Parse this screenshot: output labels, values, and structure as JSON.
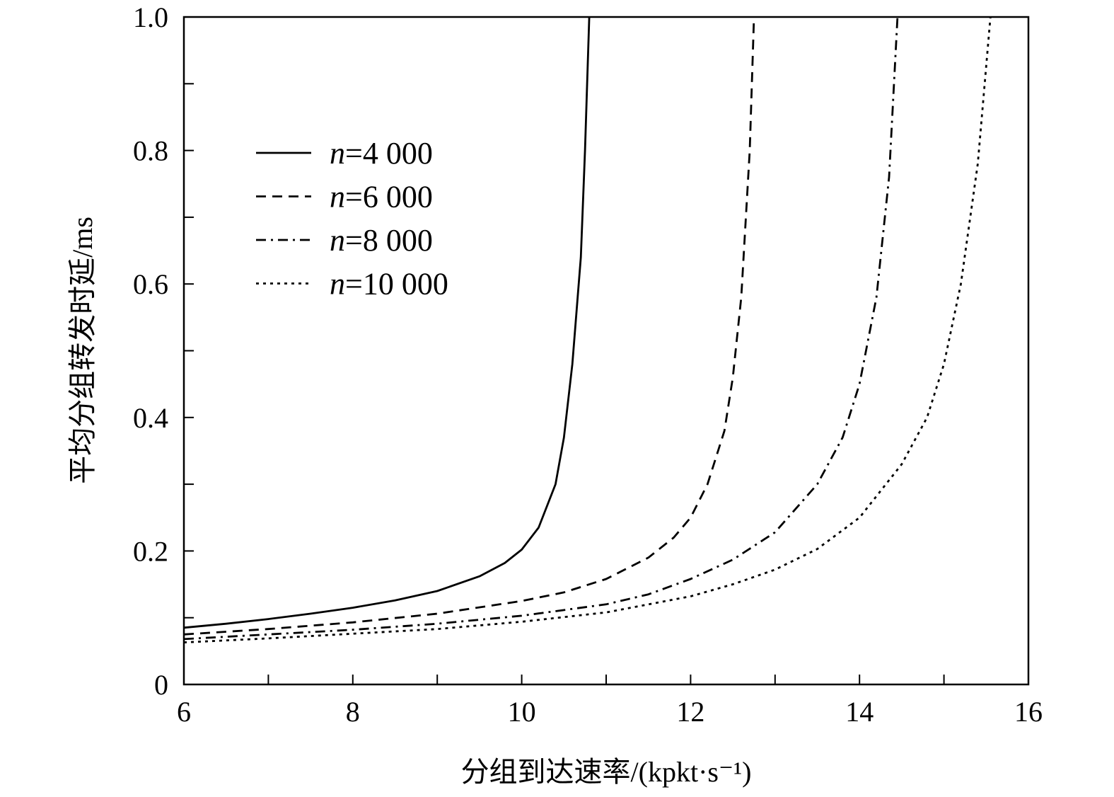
{
  "chart_data": {
    "type": "line",
    "title": "",
    "xlabel": "分组到达速率/(kpkt·s⁻¹)",
    "ylabel": "平均分组转发时延/ms",
    "xlim": [
      6,
      16
    ],
    "ylim": [
      0,
      1.0
    ],
    "x_ticks": [
      "6",
      "8",
      "10",
      "12",
      "14",
      "16"
    ],
    "y_ticks": [
      "0",
      "0.2",
      "0.4",
      "0.6",
      "0.8",
      "1.0"
    ],
    "grid": false,
    "legend_position": "upper-left",
    "series": [
      {
        "name": "n=4 000",
        "name_var": "n",
        "name_value": "=4 000",
        "line_style": "solid",
        "x": [
          6,
          6.5,
          7,
          7.5,
          8,
          8.5,
          9,
          9.5,
          9.8,
          10,
          10.2,
          10.4,
          10.5,
          10.6,
          10.7,
          10.75,
          10.8
        ],
        "y": [
          0.085,
          0.091,
          0.098,
          0.106,
          0.115,
          0.126,
          0.14,
          0.162,
          0.182,
          0.202,
          0.235,
          0.3,
          0.37,
          0.48,
          0.64,
          0.8,
          1.0
        ]
      },
      {
        "name": "n=6 000",
        "name_var": "n",
        "name_value": "=6 000",
        "line_style": "dashed",
        "x": [
          6,
          7,
          8,
          9,
          10,
          10.5,
          11,
          11.5,
          11.8,
          12,
          12.2,
          12.4,
          12.5,
          12.6,
          12.7,
          12.75
        ],
        "y": [
          0.075,
          0.083,
          0.093,
          0.106,
          0.125,
          0.138,
          0.158,
          0.19,
          0.22,
          0.25,
          0.3,
          0.38,
          0.46,
          0.58,
          0.8,
          1.0
        ]
      },
      {
        "name": "n=8 000",
        "name_var": "n",
        "name_value": "=8 000",
        "line_style": "dashdot",
        "x": [
          6,
          7,
          8,
          9,
          10,
          11,
          11.5,
          12,
          12.5,
          13,
          13.5,
          13.8,
          14,
          14.2,
          14.35,
          14.45
        ],
        "y": [
          0.068,
          0.075,
          0.082,
          0.091,
          0.103,
          0.12,
          0.135,
          0.158,
          0.187,
          0.228,
          0.3,
          0.37,
          0.45,
          0.58,
          0.76,
          1.0
        ]
      },
      {
        "name": "n=10 000",
        "name_var": "n",
        "name_value": "=10 000",
        "line_style": "dotted",
        "x": [
          6,
          7,
          8,
          9,
          10,
          11,
          12,
          12.5,
          13,
          13.5,
          14,
          14.5,
          14.8,
          15,
          15.2,
          15.4,
          15.55
        ],
        "y": [
          0.063,
          0.069,
          0.076,
          0.083,
          0.094,
          0.108,
          0.132,
          0.15,
          0.172,
          0.203,
          0.25,
          0.33,
          0.4,
          0.48,
          0.6,
          0.78,
          1.0
        ]
      }
    ]
  }
}
